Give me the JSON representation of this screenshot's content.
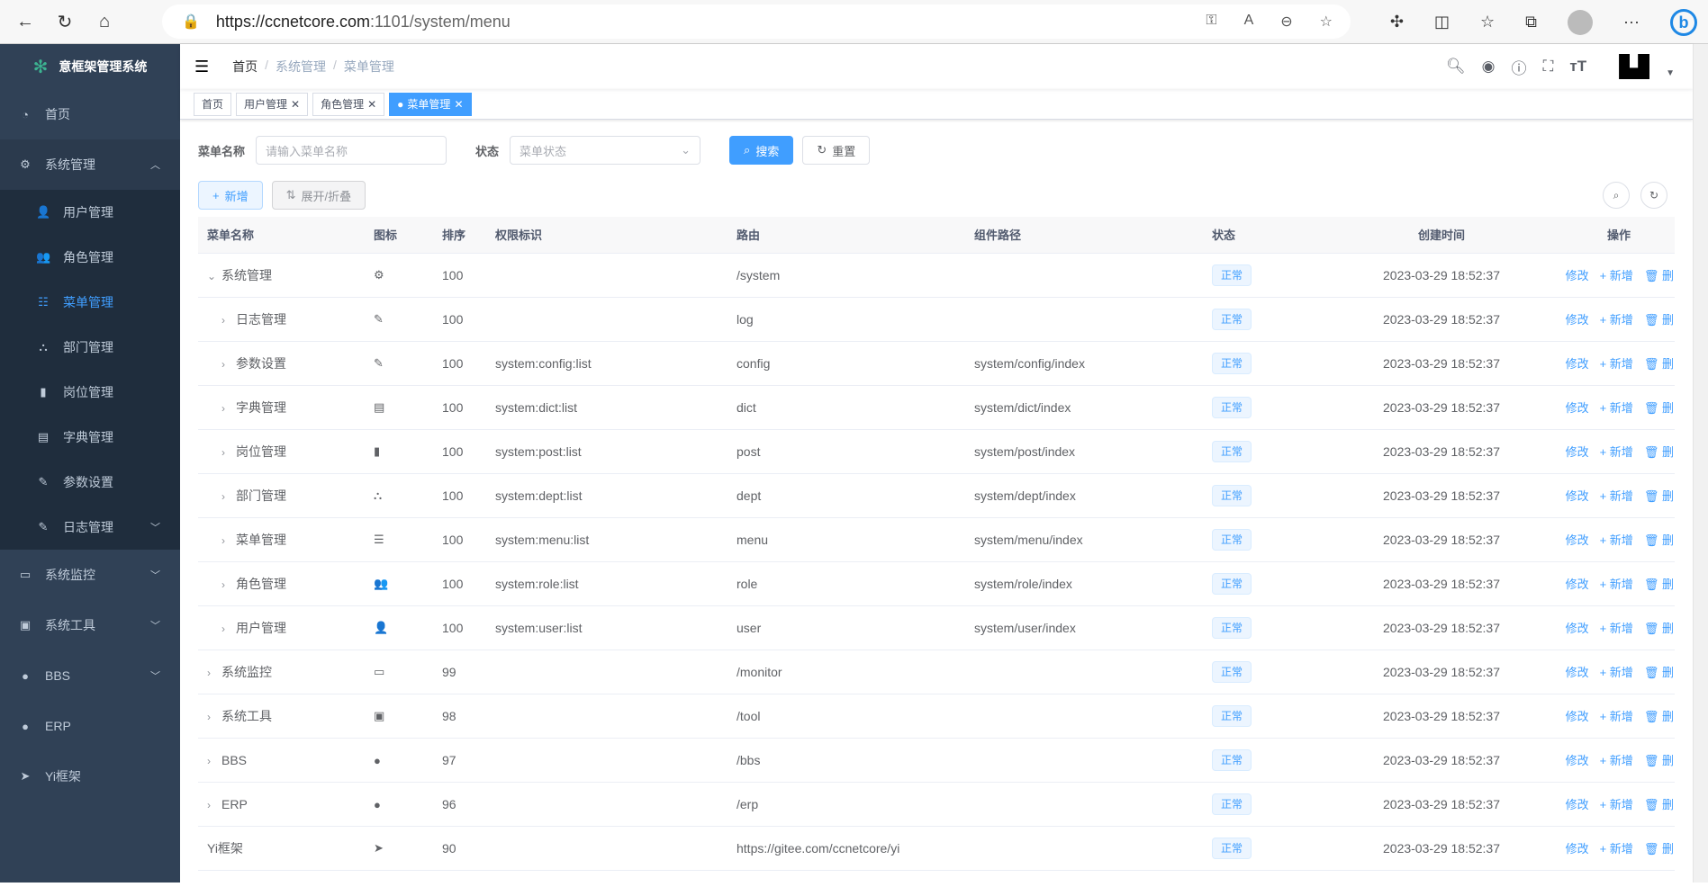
{
  "browser": {
    "url_host": "https://ccnetcore.com",
    "url_path": ":1101/system/menu"
  },
  "sidebar": {
    "title": "意框架管理系统",
    "items": [
      {
        "label": "首页",
        "icon": "dashboard-icon"
      },
      {
        "label": "系统管理",
        "icon": "gear-icon",
        "expanded": true,
        "children": [
          {
            "label": "用户管理",
            "icon": "user-icon"
          },
          {
            "label": "角色管理",
            "icon": "peoples-icon"
          },
          {
            "label": "菜单管理",
            "icon": "tree-table-icon",
            "active": true
          },
          {
            "label": "部门管理",
            "icon": "tree-icon"
          },
          {
            "label": "岗位管理",
            "icon": "post-icon"
          },
          {
            "label": "字典管理",
            "icon": "dict-icon"
          },
          {
            "label": "参数设置",
            "icon": "edit-icon"
          },
          {
            "label": "日志管理",
            "icon": "log-icon"
          }
        ]
      },
      {
        "label": "系统监控",
        "icon": "monitor-icon"
      },
      {
        "label": "系统工具",
        "icon": "tool-icon"
      },
      {
        "label": "BBS",
        "icon": "globe-icon"
      },
      {
        "label": "ERP",
        "icon": "globe-icon"
      },
      {
        "label": "Yi框架",
        "icon": "send-icon"
      }
    ]
  },
  "breadcrumb": [
    "首页",
    "系统管理",
    "菜单管理"
  ],
  "tags": [
    {
      "label": "首页"
    },
    {
      "label": "用户管理"
    },
    {
      "label": "角色管理"
    },
    {
      "label": "菜单管理",
      "active": true
    }
  ],
  "search": {
    "name_label": "菜单名称",
    "name_placeholder": "请输入菜单名称",
    "status_label": "状态",
    "status_placeholder": "菜单状态",
    "search_btn": "搜索",
    "reset_btn": "重置"
  },
  "toolbar": {
    "add": "新增",
    "toggle": "展开/折叠"
  },
  "table": {
    "headers": [
      "菜单名称",
      "图标",
      "排序",
      "权限标识",
      "路由",
      "组件路径",
      "状态",
      "创建时间",
      "操作"
    ],
    "ops": {
      "edit": "修改",
      "add": "新增",
      "delete": "删除"
    },
    "rows": [
      {
        "name": "系统管理",
        "level": 0,
        "arrow": "down",
        "icon": "⚙",
        "order": "100",
        "perm": "",
        "route": "/system",
        "comp": "",
        "status": "正常",
        "time": "2023-03-29 18:52:37"
      },
      {
        "name": "日志管理",
        "level": 1,
        "arrow": "right",
        "icon": "✎",
        "order": "100",
        "perm": "",
        "route": "log",
        "comp": "",
        "status": "正常",
        "time": "2023-03-29 18:52:37"
      },
      {
        "name": "参数设置",
        "level": 1,
        "arrow": "right",
        "icon": "✎",
        "order": "100",
        "perm": "system:config:list",
        "route": "config",
        "comp": "system/config/index",
        "status": "正常",
        "time": "2023-03-29 18:52:37"
      },
      {
        "name": "字典管理",
        "level": 1,
        "arrow": "right",
        "icon": "▤",
        "order": "100",
        "perm": "system:dict:list",
        "route": "dict",
        "comp": "system/dict/index",
        "status": "正常",
        "time": "2023-03-29 18:52:37"
      },
      {
        "name": "岗位管理",
        "level": 1,
        "arrow": "right",
        "icon": "▮",
        "order": "100",
        "perm": "system:post:list",
        "route": "post",
        "comp": "system/post/index",
        "status": "正常",
        "time": "2023-03-29 18:52:37"
      },
      {
        "name": "部门管理",
        "level": 1,
        "arrow": "right",
        "icon": "⛬",
        "order": "100",
        "perm": "system:dept:list",
        "route": "dept",
        "comp": "system/dept/index",
        "status": "正常",
        "time": "2023-03-29 18:52:37"
      },
      {
        "name": "菜单管理",
        "level": 1,
        "arrow": "right",
        "icon": "☰",
        "order": "100",
        "perm": "system:menu:list",
        "route": "menu",
        "comp": "system/menu/index",
        "status": "正常",
        "time": "2023-03-29 18:52:37"
      },
      {
        "name": "角色管理",
        "level": 1,
        "arrow": "right",
        "icon": "👥",
        "order": "100",
        "perm": "system:role:list",
        "route": "role",
        "comp": "system/role/index",
        "status": "正常",
        "time": "2023-03-29 18:52:37"
      },
      {
        "name": "用户管理",
        "level": 1,
        "arrow": "right",
        "icon": "👤",
        "order": "100",
        "perm": "system:user:list",
        "route": "user",
        "comp": "system/user/index",
        "status": "正常",
        "time": "2023-03-29 18:52:37"
      },
      {
        "name": "系统监控",
        "level": 0,
        "arrow": "right",
        "icon": "▭",
        "order": "99",
        "perm": "",
        "route": "/monitor",
        "comp": "",
        "status": "正常",
        "time": "2023-03-29 18:52:37"
      },
      {
        "name": "系统工具",
        "level": 0,
        "arrow": "right",
        "icon": "▣",
        "order": "98",
        "perm": "",
        "route": "/tool",
        "comp": "",
        "status": "正常",
        "time": "2023-03-29 18:52:37"
      },
      {
        "name": "BBS",
        "level": 0,
        "arrow": "right",
        "icon": "●",
        "order": "97",
        "perm": "",
        "route": "/bbs",
        "comp": "",
        "status": "正常",
        "time": "2023-03-29 18:52:37"
      },
      {
        "name": "ERP",
        "level": 0,
        "arrow": "right",
        "icon": "●",
        "order": "96",
        "perm": "",
        "route": "/erp",
        "comp": "",
        "status": "正常",
        "time": "2023-03-29 18:52:37"
      },
      {
        "name": "Yi框架",
        "level": 0,
        "arrow": "",
        "icon": "➤",
        "order": "90",
        "perm": "",
        "route": "https://gitee.com/ccnetcore/yi",
        "comp": "",
        "status": "正常",
        "time": "2023-03-29 18:52:37"
      }
    ]
  },
  "colors": {
    "sidebar": "#304156",
    "submenu": "#1f2d3d",
    "primary": "#409eff"
  }
}
